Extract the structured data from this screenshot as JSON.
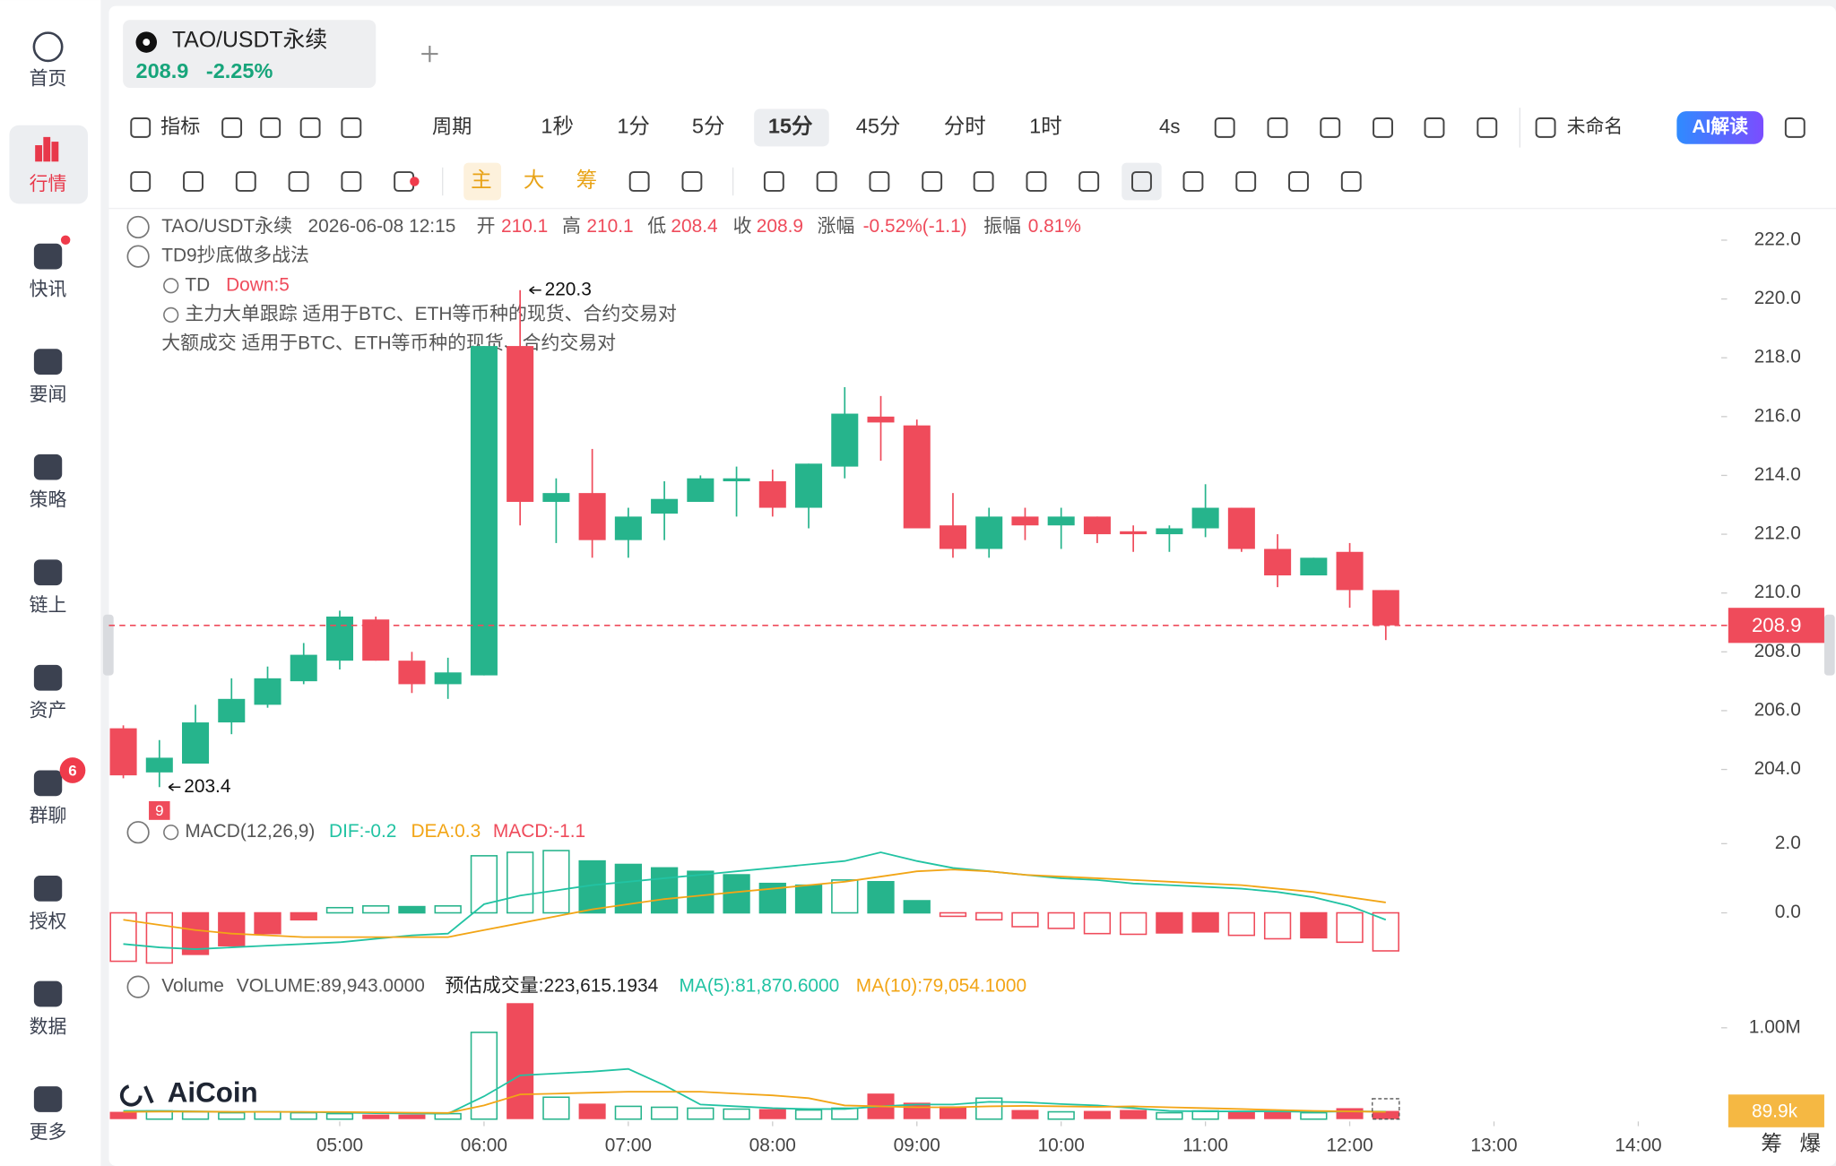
{
  "sidebar": [
    "首页",
    "行情",
    "快讯",
    "要闻",
    "策略",
    "链上",
    "资产",
    "群聊",
    "授权",
    "数据",
    "更多"
  ],
  "sidebar_badge": "6",
  "tab": {
    "symbol": "TAO/USDT永续",
    "price": "208.9",
    "change": "-2.25%"
  },
  "toolbar": {
    "indicator": "指标",
    "period": "周期",
    "intervals": [
      "1秒",
      "1分",
      "5分",
      "15分",
      "45分",
      "分时",
      "1时"
    ],
    "refresh": "4s",
    "layout_name": "未命名",
    "ai": "AI解读"
  },
  "overlays": [
    "主",
    "大",
    "筹"
  ],
  "info": {
    "symbol": "TAO/USDT永续",
    "time": "2026-06-08 12:15",
    "open_label": "开",
    "open": "210.1",
    "high_label": "高",
    "high": "210.1",
    "low_label": "低",
    "low": "208.4",
    "close_label": "收",
    "close": "208.9",
    "change_label": "涨幅",
    "change": "-0.52%(-1.1)",
    "amplitude_label": "振幅",
    "amplitude": "0.81%"
  },
  "studies": {
    "td": "TD9抄底做多战法",
    "td_tag": "TD",
    "td_value": "Down:5",
    "whale": "主力大单跟踪 适用于BTC、ETH等币种的现货、合约交易对",
    "block": "大额成交 适用于BTC、ETH等币种的现货、合约交易对"
  },
  "macd_legend": {
    "name": "MACD(12,26,9)",
    "dif": "DIF:-0.2",
    "dea": "DEA:0.3",
    "macd": "MACD:-1.1"
  },
  "volume_legend": {
    "name": "Volume",
    "volume": "VOLUME:89,943.0000",
    "estimate": "预估成交量:223,615.1934",
    "ma5": "MA(5):81,870.6000",
    "ma10": "MA(10):79,054.1000"
  },
  "watermark": "AiCoin",
  "corner_buttons": [
    "筹",
    "爆"
  ],
  "chart_data": {
    "type": "candlestick",
    "up_color": "#26b48c",
    "down_color": "#ef4b5b",
    "open": [
      205.4,
      203.9,
      204.2,
      205.6,
      206.2,
      207.0,
      207.7,
      209.1,
      207.7,
      206.9,
      207.2,
      218.4,
      213.1,
      213.4,
      211.8,
      212.7,
      213.1,
      213.8,
      213.8,
      212.9,
      214.3,
      216.0,
      215.7,
      212.3,
      211.5,
      212.6,
      212.3,
      212.6,
      212.1,
      212.0,
      212.2,
      212.9,
      211.5,
      210.6,
      211.4,
      210.1
    ],
    "high": [
      205.5,
      205.0,
      206.2,
      207.1,
      207.5,
      208.3,
      209.4,
      209.2,
      208.0,
      207.8,
      218.4,
      220.3,
      213.9,
      214.9,
      212.9,
      213.8,
      214.0,
      214.3,
      214.2,
      214.4,
      217.0,
      216.7,
      215.9,
      213.4,
      212.9,
      212.9,
      212.9,
      212.6,
      212.3,
      212.3,
      213.7,
      212.9,
      212.0,
      211.2,
      211.7,
      210.1
    ],
    "low": [
      203.7,
      203.4,
      204.2,
      205.2,
      206.1,
      206.9,
      207.4,
      207.7,
      206.6,
      206.4,
      207.2,
      212.3,
      211.7,
      211.2,
      211.2,
      211.8,
      213.1,
      212.6,
      212.6,
      212.2,
      213.9,
      214.5,
      212.2,
      211.2,
      211.2,
      211.8,
      211.5,
      211.7,
      211.4,
      211.4,
      211.9,
      211.4,
      210.2,
      210.6,
      209.5,
      208.4
    ],
    "close": [
      203.8,
      204.4,
      205.6,
      206.4,
      207.1,
      207.9,
      209.2,
      207.7,
      206.9,
      207.3,
      218.4,
      213.1,
      213.4,
      211.8,
      212.6,
      213.2,
      213.9,
      213.9,
      212.9,
      214.4,
      216.1,
      215.8,
      212.2,
      211.5,
      212.6,
      212.3,
      212.6,
      212.0,
      212.0,
      212.2,
      212.9,
      211.5,
      210.6,
      211.2,
      210.1,
      208.9
    ],
    "xlim": [
      -0.4,
      44.3
    ],
    "xticks": [
      {
        "value": 6,
        "label": "05:00"
      },
      {
        "value": 10,
        "label": "06:00"
      },
      {
        "value": 14,
        "label": "07:00"
      },
      {
        "value": 18,
        "label": "08:00"
      },
      {
        "value": 22,
        "label": "09:00"
      },
      {
        "value": 26,
        "label": "10:00"
      },
      {
        "value": 30,
        "label": "11:00"
      },
      {
        "value": 34,
        "label": "12:00"
      },
      {
        "value": 38,
        "label": "13:00"
      },
      {
        "value": 42,
        "label": "14:00"
      }
    ],
    "ylim": [
      202.3,
      223.0
    ],
    "yticks": [
      {
        "value": 222,
        "label": "222.0"
      },
      {
        "value": 220,
        "label": "220.0"
      },
      {
        "value": 218,
        "label": "218.0"
      },
      {
        "value": 216,
        "label": "216.0"
      },
      {
        "value": 214,
        "label": "214.0"
      },
      {
        "value": 212,
        "label": "212.0"
      },
      {
        "value": 210,
        "label": "210.0"
      },
      {
        "value": 208,
        "label": "208.0"
      },
      {
        "value": 206,
        "label": "206.0"
      },
      {
        "value": 204,
        "label": "204.0"
      }
    ],
    "last_price": 208.9,
    "high_label": 220.3,
    "low_label": 203.4,
    "td_count": 9,
    "macd": {
      "dif_color": "#22c3a3",
      "dea_color": "#f2a516",
      "hist": [
        -1.4,
        -1.45,
        -1.2,
        -0.95,
        -0.6,
        -0.2,
        0.15,
        0.2,
        0.18,
        0.2,
        1.65,
        1.75,
        1.8,
        1.5,
        1.4,
        1.3,
        1.2,
        1.1,
        0.85,
        0.8,
        0.95,
        0.9,
        0.35,
        -0.1,
        -0.2,
        -0.4,
        -0.45,
        -0.6,
        -0.62,
        -0.58,
        -0.55,
        -0.65,
        -0.75,
        -0.72,
        -0.85,
        -1.1
      ],
      "dif": [
        -0.9,
        -1.0,
        -1.05,
        -1.0,
        -0.95,
        -0.9,
        -0.85,
        -0.75,
        -0.65,
        -0.6,
        0.25,
        0.5,
        0.65,
        0.8,
        0.9,
        1.0,
        1.1,
        1.2,
        1.3,
        1.4,
        1.5,
        1.75,
        1.5,
        1.3,
        1.2,
        1.1,
        1.0,
        0.95,
        0.85,
        0.8,
        0.75,
        0.7,
        0.6,
        0.45,
        0.2,
        -0.2
      ],
      "dea": [
        -0.2,
        -0.35,
        -0.5,
        -0.6,
        -0.65,
        -0.7,
        -0.7,
        -0.7,
        -0.7,
        -0.7,
        -0.5,
        -0.3,
        -0.1,
        0.1,
        0.25,
        0.4,
        0.5,
        0.6,
        0.7,
        0.8,
        0.9,
        1.05,
        1.2,
        1.25,
        1.2,
        1.1,
        1.05,
        1.0,
        0.95,
        0.9,
        0.85,
        0.8,
        0.7,
        0.6,
        0.45,
        0.3
      ],
      "ylim": [
        -1.7,
        2.7
      ],
      "yticks": [
        {
          "value": 2,
          "label": "2.0"
        },
        {
          "value": 0,
          "label": "0.0"
        }
      ]
    },
    "volume": {
      "ma5_color": "#22c3a3",
      "ma10_color": "#f2a516",
      "values": [
        80000,
        90000,
        80000,
        70000,
        80000,
        70000,
        60000,
        50000,
        50000,
        60000,
        950000,
        1270000,
        240000,
        170000,
        140000,
        130000,
        120000,
        110000,
        110000,
        100000,
        120000,
        280000,
        180000,
        140000,
        230000,
        100000,
        80000,
        90000,
        100000,
        70000,
        90000,
        80000,
        80000,
        70000,
        120000,
        89943
      ],
      "ma5": [
        90000,
        90000,
        85000,
        80000,
        80000,
        78000,
        72000,
        66000,
        62000,
        60000,
        250000,
        480000,
        500000,
        520000,
        550000,
        370000,
        160000,
        140000,
        120000,
        110000,
        110000,
        140000,
        160000,
        160000,
        190000,
        185000,
        165000,
        150000,
        120000,
        90000,
        85000,
        85000,
        85000,
        80000,
        85000,
        81870.6
      ],
      "ma10": [
        80000,
        82000,
        82000,
        80000,
        80000,
        80000,
        78000,
        74000,
        70000,
        68000,
        150000,
        270000,
        280000,
        290000,
        300000,
        300000,
        300000,
        280000,
        260000,
        230000,
        150000,
        140000,
        130000,
        130000,
        140000,
        145000,
        140000,
        135000,
        140000,
        130000,
        120000,
        110000,
        100000,
        90000,
        85000,
        79054.1
      ],
      "estimate": 223615.1934,
      "last": {
        "value": 89943,
        "label": "89.9k"
      },
      "ylim": [
        0,
        1615000
      ],
      "yticks": [
        {
          "value": 1000000,
          "label": "1.00M"
        }
      ]
    }
  }
}
